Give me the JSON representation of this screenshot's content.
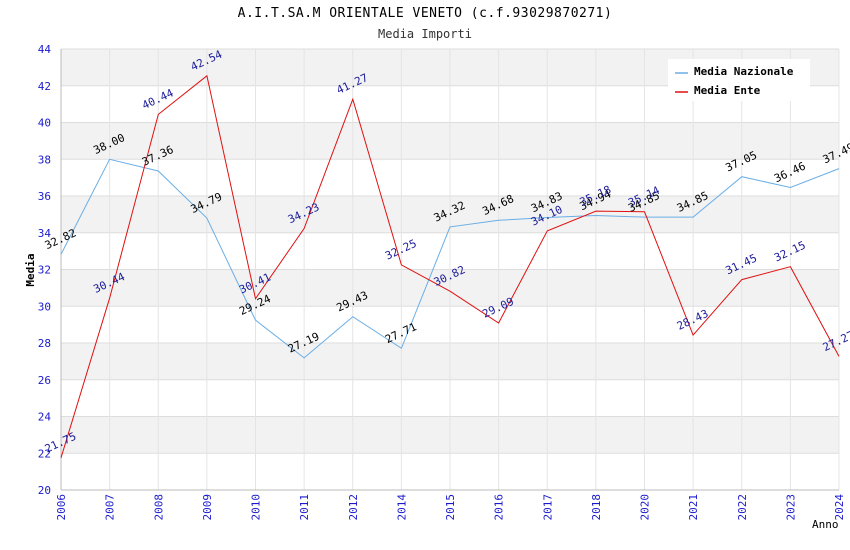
{
  "chart_data": {
    "type": "line",
    "title": "A.I.T.SA.M ORIENTALE VENETO (c.f.93029870271)",
    "subtitle": "Media Importi",
    "xlabel": "Anno",
    "ylabel": "Media",
    "categories": [
      "2006",
      "2007",
      "2008",
      "2009",
      "2010",
      "2011",
      "2012",
      "2014",
      "2015",
      "2016",
      "2017",
      "2018",
      "2020",
      "2021",
      "2022",
      "2023",
      "2024"
    ],
    "ylim": [
      20,
      44
    ],
    "yticks": [
      20,
      22,
      24,
      26,
      28,
      30,
      32,
      34,
      36,
      38,
      40,
      42,
      44
    ],
    "grid": true,
    "legend_position": "top-right",
    "series": [
      {
        "name": "Media Nazionale",
        "color": "#6aaee6",
        "label_color": "#000000",
        "values": [
          32.82,
          38.0,
          37.36,
          34.79,
          29.24,
          27.19,
          29.43,
          27.71,
          34.32,
          34.68,
          34.83,
          34.94,
          34.85,
          34.85,
          37.05,
          36.46,
          37.49
        ]
      },
      {
        "name": "Media Ente",
        "color": "#e01010",
        "label_color": "#1a1a99",
        "values": [
          21.75,
          30.44,
          40.44,
          42.54,
          30.41,
          34.23,
          41.27,
          32.25,
          30.82,
          29.09,
          34.1,
          35.18,
          35.14,
          28.43,
          31.45,
          32.15,
          27.27
        ]
      }
    ]
  }
}
